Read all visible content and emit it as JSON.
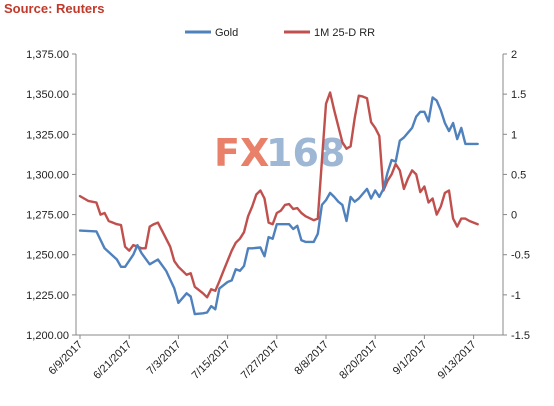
{
  "source_label": "Source: Reuters",
  "watermark": {
    "text_fx": "FX",
    "text_num": "168",
    "color_fx": "#e8806a",
    "color_num": "#9db7d4"
  },
  "chart_data": {
    "type": "line",
    "title": "",
    "legend_position": "top-center",
    "grid": false,
    "x_axis": {
      "tick_labels": [
        "6/9/2017",
        "6/21/2017",
        "7/3/2017",
        "7/15/2017",
        "7/27/2017",
        "8/8/2017",
        "8/20/2017",
        "9/1/2017",
        "9/13/2017"
      ],
      "tick_index": [
        0,
        12,
        24,
        36,
        48,
        60,
        72,
        84,
        96
      ],
      "count": 103
    },
    "y_left": {
      "min": 1200,
      "max": 1375,
      "step": 25,
      "tick_labels": [
        "1,200.00",
        "1,225.00",
        "1,250.00",
        "1,275.00",
        "1,300.00",
        "1,325.00",
        "1,350.00",
        "1,375.00"
      ]
    },
    "y_right": {
      "min": -1.5,
      "max": 2,
      "step": 0.5,
      "tick_labels": [
        "-1.5",
        "-1",
        "-0.5",
        "0",
        "0.5",
        "1",
        "1.5",
        "2"
      ]
    },
    "series": [
      {
        "name": "Gold",
        "axis": "left",
        "color": "#4f81bd",
        "points": [
          [
            0,
            1265
          ],
          [
            4,
            1264.5
          ],
          [
            6,
            1254
          ],
          [
            9,
            1247
          ],
          [
            10,
            1242.5
          ],
          [
            11,
            1242.5
          ],
          [
            13,
            1250
          ],
          [
            14,
            1256
          ],
          [
            15,
            1251
          ],
          [
            17,
            1244
          ],
          [
            19,
            1247
          ],
          [
            21,
            1240
          ],
          [
            23,
            1229
          ],
          [
            24,
            1220
          ],
          [
            26,
            1226
          ],
          [
            27,
            1224
          ],
          [
            28,
            1213
          ],
          [
            30,
            1213.5
          ],
          [
            31,
            1214
          ],
          [
            32,
            1218
          ],
          [
            33,
            1216
          ],
          [
            34,
            1229
          ],
          [
            36,
            1233
          ],
          [
            37,
            1234
          ],
          [
            38,
            1241
          ],
          [
            39,
            1240
          ],
          [
            40,
            1243
          ],
          [
            41,
            1254
          ],
          [
            42,
            1254
          ],
          [
            44,
            1254.5
          ],
          [
            45,
            1249
          ],
          [
            46,
            1261
          ],
          [
            47,
            1260
          ],
          [
            48,
            1269
          ],
          [
            49,
            1269
          ],
          [
            50,
            1269
          ],
          [
            51,
            1269
          ],
          [
            52,
            1266
          ],
          [
            53,
            1268
          ],
          [
            54,
            1259
          ],
          [
            55,
            1258
          ],
          [
            57,
            1258
          ],
          [
            58,
            1263
          ],
          [
            59,
            1281
          ],
          [
            60,
            1284
          ],
          [
            61,
            1288.5
          ],
          [
            62,
            1286
          ],
          [
            63,
            1283
          ],
          [
            64,
            1281
          ],
          [
            65,
            1271
          ],
          [
            66,
            1286
          ],
          [
            67,
            1283
          ],
          [
            68,
            1285
          ],
          [
            70,
            1291
          ],
          [
            71,
            1285
          ],
          [
            72,
            1290
          ],
          [
            73,
            1286
          ],
          [
            74,
            1291
          ],
          [
            75,
            1301
          ],
          [
            76,
            1309
          ],
          [
            77,
            1308
          ],
          [
            78,
            1321
          ],
          [
            79,
            1323
          ],
          [
            80,
            1326
          ],
          [
            81,
            1329
          ],
          [
            82,
            1336
          ],
          [
            83,
            1339
          ],
          [
            84,
            1339
          ],
          [
            85,
            1333
          ],
          [
            86,
            1348
          ],
          [
            87,
            1346
          ],
          [
            88,
            1340
          ],
          [
            89,
            1332
          ],
          [
            90,
            1327
          ],
          [
            91,
            1332
          ],
          [
            92,
            1322
          ],
          [
            93,
            1329
          ],
          [
            94,
            1319
          ],
          [
            97,
            1319
          ]
        ]
      },
      {
        "name": "1M 25-D RR",
        "axis": "right",
        "color": "#c0504d",
        "points": [
          [
            0,
            0.23
          ],
          [
            2,
            0.17
          ],
          [
            4,
            0.15
          ],
          [
            5,
            0
          ],
          [
            6,
            0.02
          ],
          [
            7,
            -0.08
          ],
          [
            9,
            -0.12
          ],
          [
            10,
            -0.13
          ],
          [
            11,
            -0.4
          ],
          [
            12,
            -0.45
          ],
          [
            13,
            -0.38
          ],
          [
            15,
            -0.42
          ],
          [
            16,
            -0.42
          ],
          [
            17,
            -0.15
          ],
          [
            18,
            -0.12
          ],
          [
            19,
            -0.1
          ],
          [
            20,
            -0.2
          ],
          [
            22,
            -0.4
          ],
          [
            23,
            -0.58
          ],
          [
            24,
            -0.65
          ],
          [
            25,
            -0.7
          ],
          [
            26,
            -0.75
          ],
          [
            27,
            -0.73
          ],
          [
            28,
            -0.9
          ],
          [
            30,
            -0.98
          ],
          [
            31,
            -1.03
          ],
          [
            32,
            -0.93
          ],
          [
            33,
            -0.95
          ],
          [
            34,
            -0.83
          ],
          [
            35,
            -0.7
          ],
          [
            37,
            -0.45
          ],
          [
            38,
            -0.35
          ],
          [
            39,
            -0.3
          ],
          [
            40,
            -0.22
          ],
          [
            41,
            -0.02
          ],
          [
            42,
            0.1
          ],
          [
            43,
            0.25
          ],
          [
            44,
            0.3
          ],
          [
            45,
            0.2
          ],
          [
            46,
            -0.1
          ],
          [
            47,
            -0.12
          ],
          [
            48,
            0.02
          ],
          [
            49,
            0.05
          ],
          [
            50,
            0.12
          ],
          [
            51,
            0.13
          ],
          [
            52,
            0.07
          ],
          [
            53,
            0.08
          ],
          [
            54,
            0.02
          ],
          [
            55,
            -0.02
          ],
          [
            57,
            -0.07
          ],
          [
            58,
            -0.05
          ],
          [
            59,
            0.67
          ],
          [
            60,
            1.38
          ],
          [
            61,
            1.52
          ],
          [
            62,
            1.3
          ],
          [
            63,
            1.1
          ],
          [
            64,
            0.9
          ],
          [
            65,
            0.82
          ],
          [
            66,
            0.85
          ],
          [
            67,
            1.2
          ],
          [
            68,
            1.48
          ],
          [
            69,
            1.47
          ],
          [
            70,
            1.45
          ],
          [
            71,
            1.15
          ],
          [
            72,
            1.08
          ],
          [
            73,
            0.98
          ],
          [
            74,
            0.3
          ],
          [
            75,
            0.42
          ],
          [
            76,
            0.5
          ],
          [
            77,
            0.63
          ],
          [
            78,
            0.55
          ],
          [
            79,
            0.32
          ],
          [
            80,
            0.45
          ],
          [
            81,
            0.55
          ],
          [
            82,
            0.5
          ],
          [
            83,
            0.28
          ],
          [
            84,
            0.35
          ],
          [
            85,
            0.15
          ],
          [
            86,
            0.2
          ],
          [
            87,
            0
          ],
          [
            88,
            0.1
          ],
          [
            89,
            0.27
          ],
          [
            90,
            0.3
          ],
          [
            91,
            -0.05
          ],
          [
            92,
            -0.15
          ],
          [
            93,
            -0.05
          ],
          [
            94,
            -0.05
          ],
          [
            95,
            -0.08
          ],
          [
            96,
            -0.1
          ],
          [
            97,
            -0.12
          ]
        ]
      }
    ]
  }
}
